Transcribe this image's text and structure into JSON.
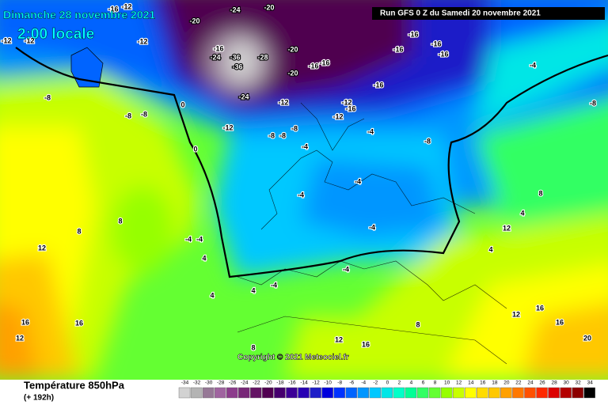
{
  "header": {
    "date": "Dimanche 28 novembre 2021",
    "time": "2:00 locale",
    "run": "Run GFS 0 Z du Samedi 20 novembre 2021"
  },
  "copyright": "Copyright © 2021 Meteociel.fr",
  "footer": {
    "title": "Température 850hPa",
    "lead": "(+ 192h)"
  },
  "legend": {
    "values": [
      -34,
      -32,
      -30,
      -28,
      -26,
      -24,
      -22,
      -20,
      -18,
      -16,
      -14,
      -12,
      -10,
      -8,
      -6,
      -4,
      -2,
      0,
      2,
      4,
      6,
      8,
      10,
      12,
      14,
      16,
      18,
      20,
      22,
      24,
      26,
      28,
      30,
      32,
      34
    ],
    "colors": [
      "#d2d2d2",
      "#b4b4b4",
      "#967896",
      "#a064a0",
      "#8c3c8c",
      "#782878",
      "#641464",
      "#500050",
      "#46006e",
      "#3c0096",
      "#2800b4",
      "#1e1ec8",
      "#0000dc",
      "#0032ff",
      "#0064ff",
      "#0096ff",
      "#00c8ff",
      "#00e6e6",
      "#00ffc8",
      "#00ff96",
      "#32ff64",
      "#64ff32",
      "#96ff00",
      "#c8ff00",
      "#ffff00",
      "#ffdc00",
      "#ffc800",
      "#ffa000",
      "#ff7800",
      "#ff5000",
      "#ff2800",
      "#dc0000",
      "#b40000",
      "#8c0000",
      "#000000"
    ]
  },
  "contour_labels": [
    -16,
    -12,
    -12,
    -12,
    -20,
    -24,
    -20,
    -16,
    -24,
    -36,
    -36,
    -28,
    -20,
    -16,
    -16,
    -20,
    -24,
    -12,
    -12,
    -16,
    -12,
    -16,
    -16,
    -16,
    -16,
    -16,
    -4,
    -8,
    -8,
    -8,
    -8,
    -12,
    -8,
    -8,
    -8,
    -4,
    -4,
    -8,
    -4,
    -4,
    -4,
    -4,
    8,
    8,
    12,
    16,
    12,
    16,
    8,
    12,
    16,
    20,
    12,
    4,
    8,
    4,
    16,
    12,
    8,
    4,
    4,
    -4,
    -4,
    4,
    0,
    0,
    -12,
    -4,
    16
  ]
}
